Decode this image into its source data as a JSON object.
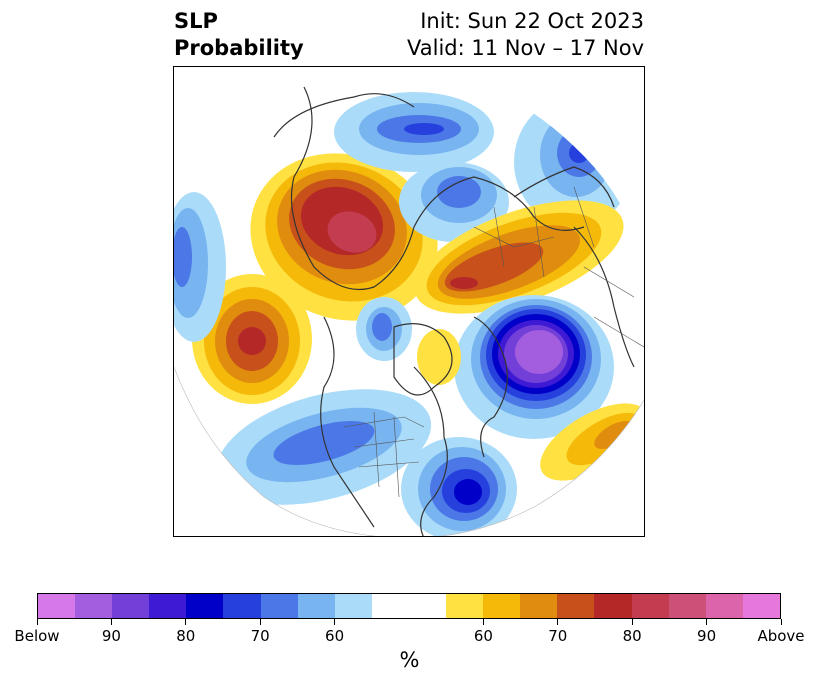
{
  "title": {
    "left_line1": "SLP",
    "left_line2": "Probability",
    "right_line1": "Init: Sun 22 Oct 2023",
    "right_line2": "Valid: 11 Nov – 17 Nov"
  },
  "colorbar": {
    "label": "%",
    "colors": [
      "#d678e8",
      "#a35ee0",
      "#7240d8",
      "#3f1ad4",
      "#0000c8",
      "#2540dc",
      "#4b78e6",
      "#78b4f0",
      "#aadcfa",
      "#ffffff",
      "#ffffff",
      "#ffe141",
      "#f5b90a",
      "#e08c0f",
      "#c8501a",
      "#b42828",
      "#c33c50",
      "#cd5078",
      "#dc64aa",
      "#e678dc"
    ],
    "tick_labels": [
      "Below",
      "90",
      "80",
      "70",
      "60",
      "60",
      "70",
      "80",
      "90",
      "Above"
    ]
  },
  "map": {
    "projection": "north-polar-stereographic",
    "field": "SLP probability anomaly",
    "palette": {
      "below": [
        "#aadcfa",
        "#78b4f0",
        "#4b78e6",
        "#2540dc",
        "#0000c8",
        "#3f1ad4",
        "#7240d8",
        "#a35ee0"
      ],
      "above": [
        "#ffe141",
        "#f5b90a",
        "#e08c0f",
        "#c8501a",
        "#b42828",
        "#c33c50"
      ]
    }
  }
}
